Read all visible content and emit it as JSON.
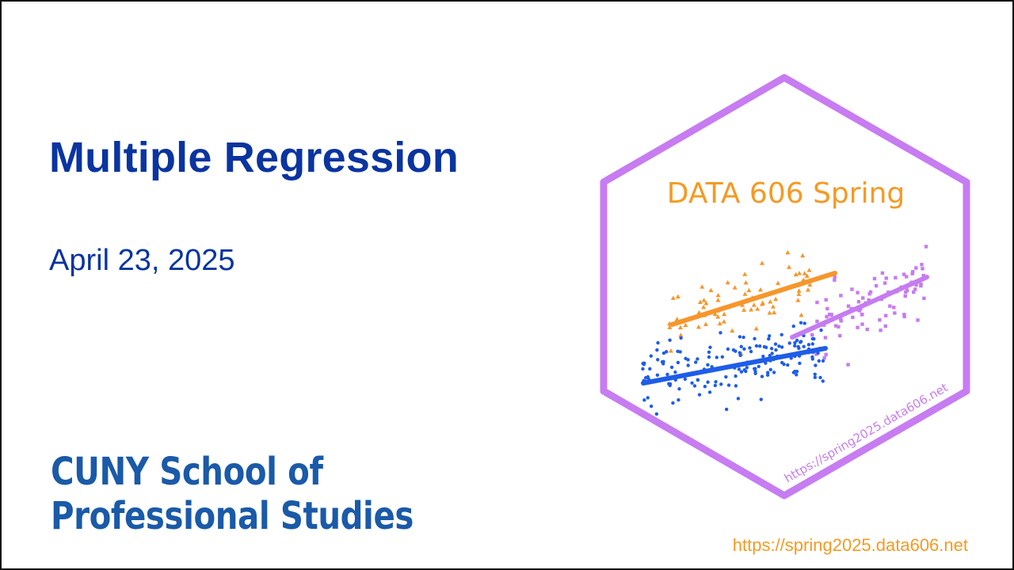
{
  "slide": {
    "title": "Multiple Regression",
    "date": "April 23, 2025",
    "logo_line1": "CUNY School of",
    "logo_line2": "Professional Studies",
    "footer_url": "https://spring2025.data606.net"
  },
  "hex_sticker": {
    "title": "DATA 606 Spring",
    "url": "https://spring2025.data606.net",
    "icon": "hex-sticker-scatter-regression",
    "colors": {
      "border": "#c77cf2",
      "title": "#f59a23",
      "url": "#c77cf2",
      "orange": "#f7962a",
      "purple": "#c67cf0",
      "blue": "#1f5de8"
    }
  },
  "colors": {
    "title": "#0a34a0",
    "logo": "#1a5aa8",
    "footer_url": "#f59a23"
  }
}
